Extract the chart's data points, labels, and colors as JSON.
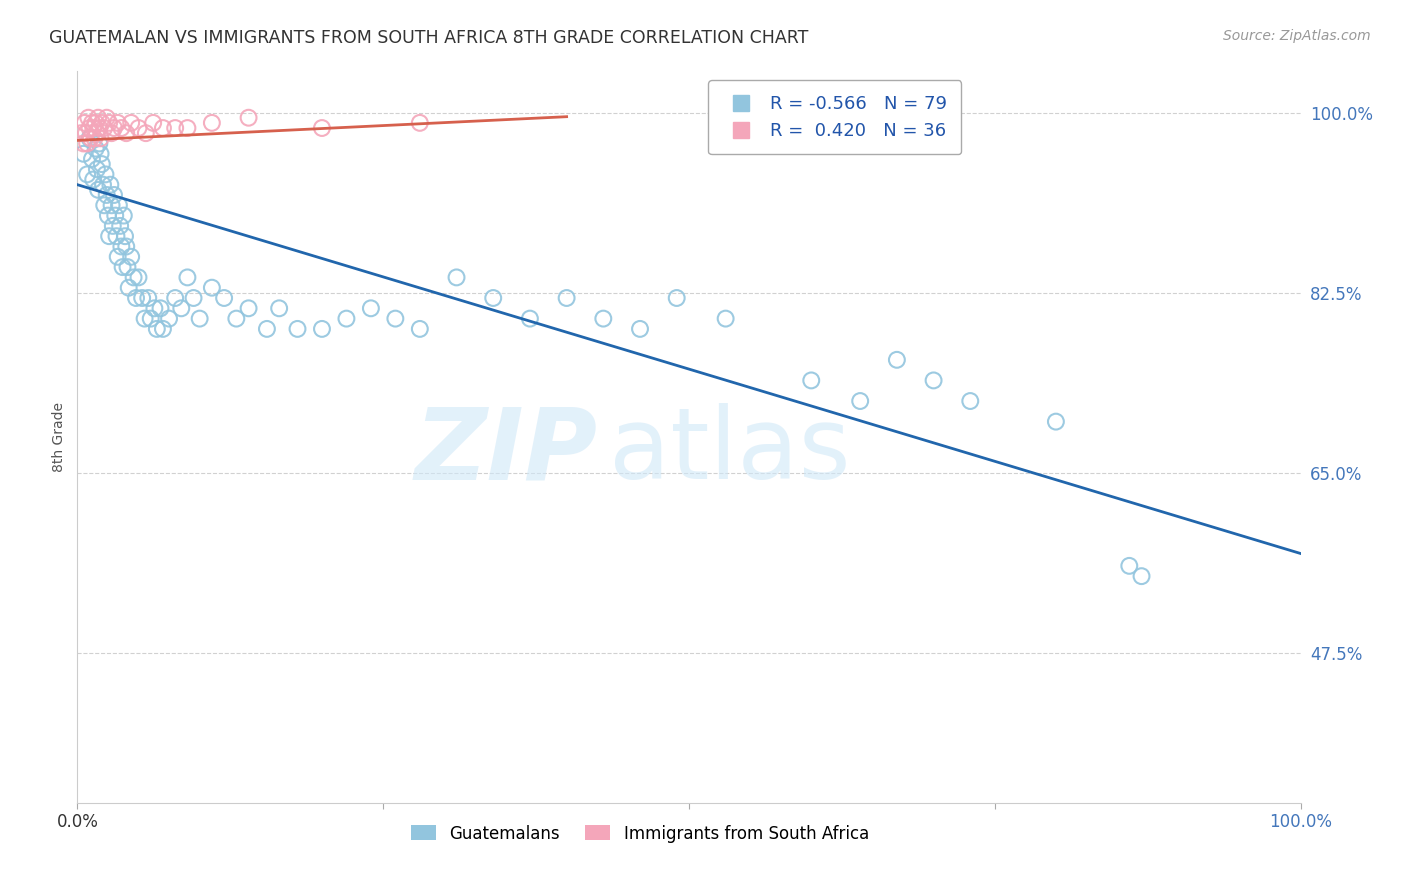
{
  "title": "GUATEMALAN VS IMMIGRANTS FROM SOUTH AFRICA 8TH GRADE CORRELATION CHART",
  "source": "Source: ZipAtlas.com",
  "ylabel": "8th Grade",
  "xlim": [
    0.0,
    1.0
  ],
  "ylim": [
    0.33,
    1.04
  ],
  "yticks": [
    0.475,
    0.65,
    0.825,
    1.0
  ],
  "ytick_labels": [
    "47.5%",
    "65.0%",
    "82.5%",
    "100.0%"
  ],
  "xticks": [
    0.0,
    0.25,
    0.5,
    0.75,
    1.0
  ],
  "xtick_labels": [
    "0.0%",
    "",
    "",
    "",
    "100.0%"
  ],
  "blue_r": -0.566,
  "blue_n": 79,
  "pink_r": 0.42,
  "pink_n": 36,
  "blue_color": "#92c5de",
  "pink_color": "#f4a6ba",
  "blue_line_color": "#2166ac",
  "pink_line_color": "#d6604d",
  "legend_label_blue": "Guatemalans",
  "legend_label_pink": "Immigrants from South Africa",
  "blue_x": [
    0.005,
    0.008,
    0.01,
    0.012,
    0.013,
    0.015,
    0.016,
    0.017,
    0.018,
    0.019,
    0.02,
    0.021,
    0.022,
    0.023,
    0.024,
    0.025,
    0.026,
    0.027,
    0.028,
    0.029,
    0.03,
    0.031,
    0.032,
    0.033,
    0.034,
    0.035,
    0.036,
    0.037,
    0.038,
    0.039,
    0.04,
    0.041,
    0.042,
    0.044,
    0.046,
    0.048,
    0.05,
    0.053,
    0.055,
    0.058,
    0.06,
    0.063,
    0.065,
    0.068,
    0.07,
    0.075,
    0.08,
    0.085,
    0.09,
    0.095,
    0.1,
    0.11,
    0.12,
    0.13,
    0.14,
    0.155,
    0.165,
    0.18,
    0.2,
    0.22,
    0.24,
    0.26,
    0.28,
    0.31,
    0.34,
    0.37,
    0.4,
    0.43,
    0.46,
    0.49,
    0.53,
    0.6,
    0.64,
    0.67,
    0.7,
    0.73,
    0.8,
    0.86,
    0.87
  ],
  "blue_y": [
    0.96,
    0.94,
    0.975,
    0.955,
    0.935,
    0.965,
    0.945,
    0.925,
    0.97,
    0.96,
    0.95,
    0.93,
    0.91,
    0.94,
    0.92,
    0.9,
    0.88,
    0.93,
    0.91,
    0.89,
    0.92,
    0.9,
    0.88,
    0.86,
    0.91,
    0.89,
    0.87,
    0.85,
    0.9,
    0.88,
    0.87,
    0.85,
    0.83,
    0.86,
    0.84,
    0.82,
    0.84,
    0.82,
    0.8,
    0.82,
    0.8,
    0.81,
    0.79,
    0.81,
    0.79,
    0.8,
    0.82,
    0.81,
    0.84,
    0.82,
    0.8,
    0.83,
    0.82,
    0.8,
    0.81,
    0.79,
    0.81,
    0.79,
    0.79,
    0.8,
    0.81,
    0.8,
    0.79,
    0.84,
    0.82,
    0.8,
    0.82,
    0.8,
    0.79,
    0.82,
    0.8,
    0.74,
    0.72,
    0.76,
    0.74,
    0.72,
    0.7,
    0.56,
    0.55
  ],
  "pink_x": [
    0.003,
    0.005,
    0.006,
    0.007,
    0.008,
    0.009,
    0.01,
    0.011,
    0.012,
    0.013,
    0.014,
    0.015,
    0.016,
    0.017,
    0.018,
    0.019,
    0.02,
    0.022,
    0.024,
    0.026,
    0.028,
    0.03,
    0.033,
    0.036,
    0.04,
    0.044,
    0.05,
    0.056,
    0.062,
    0.07,
    0.08,
    0.09,
    0.11,
    0.14,
    0.2,
    0.28
  ],
  "pink_y": [
    0.98,
    0.97,
    0.99,
    0.98,
    0.97,
    0.995,
    0.985,
    0.975,
    0.99,
    0.985,
    0.975,
    0.99,
    0.98,
    0.995,
    0.985,
    0.975,
    0.99,
    0.985,
    0.995,
    0.99,
    0.98,
    0.985,
    0.99,
    0.985,
    0.98,
    0.99,
    0.985,
    0.98,
    0.99,
    0.985,
    0.985,
    0.985,
    0.99,
    0.995,
    0.985,
    0.99
  ],
  "blue_trend_x": [
    0.0,
    1.0
  ],
  "blue_trend_y": [
    0.93,
    0.572
  ],
  "pink_trend_x": [
    0.0,
    0.4
  ],
  "pink_trend_y": [
    0.973,
    0.996
  ]
}
